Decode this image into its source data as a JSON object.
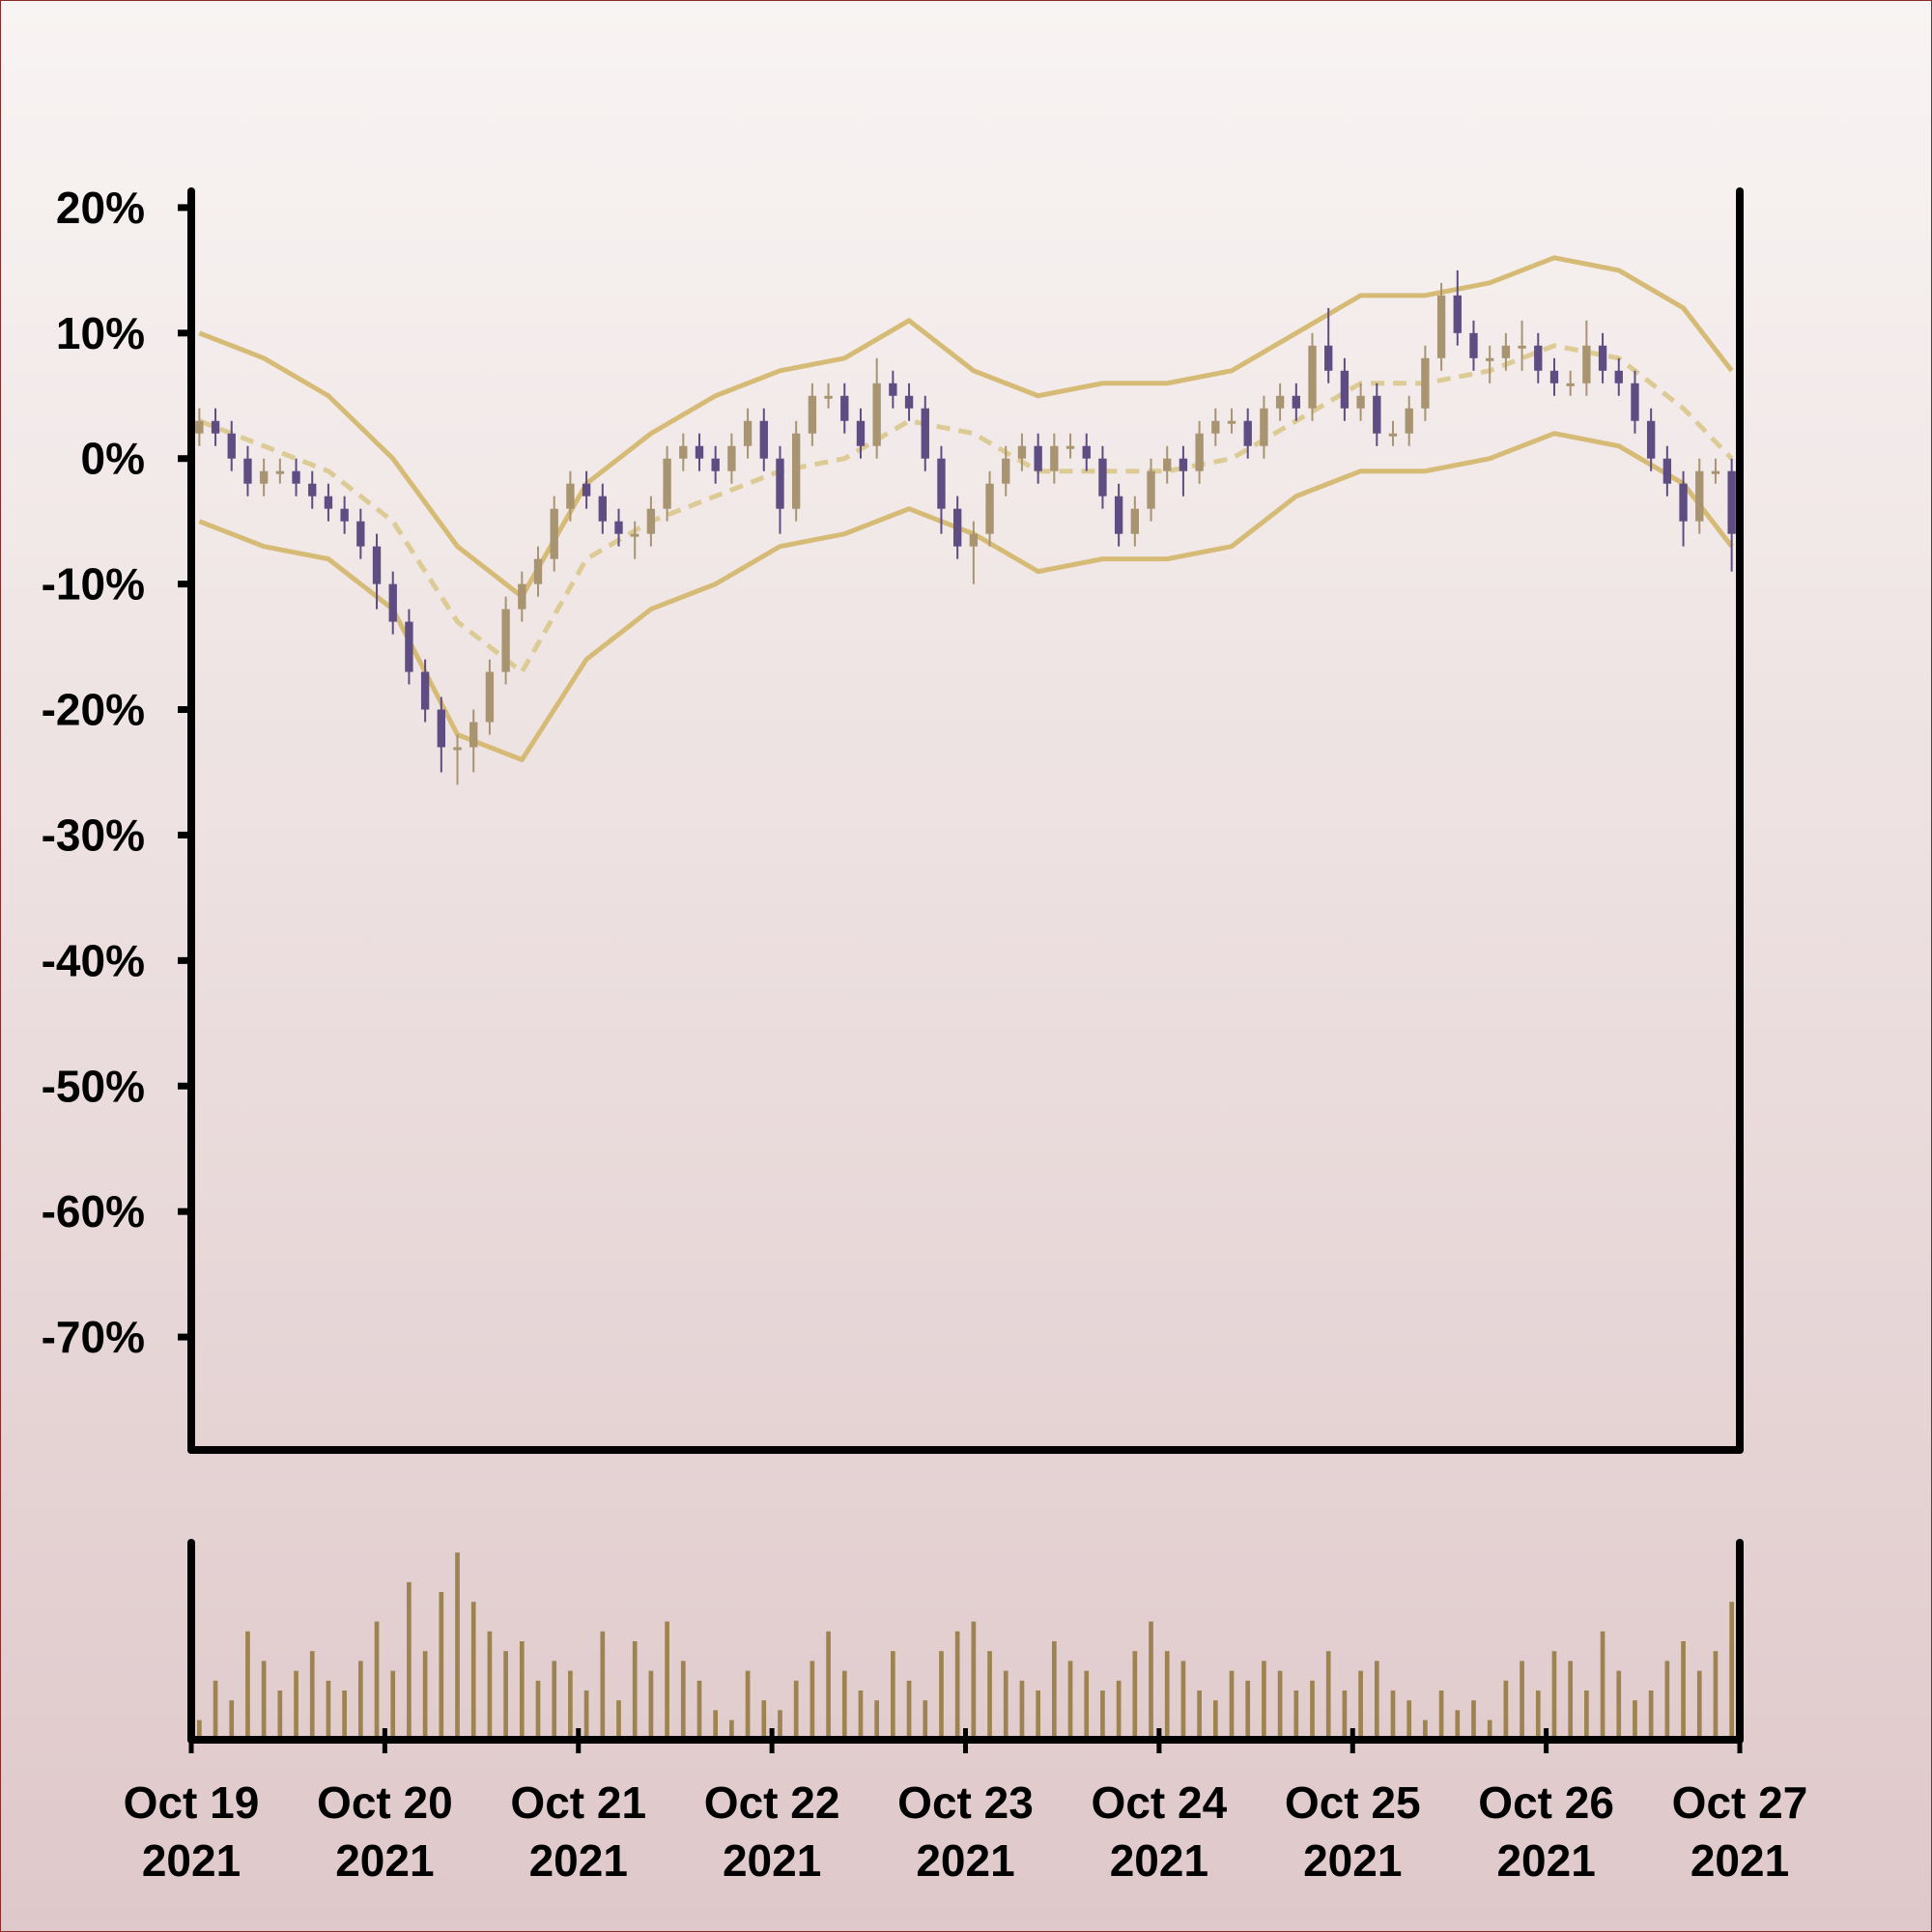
{
  "chart_data": [
    {
      "type": "candlestick",
      "x": [
        1,
        3,
        5,
        7,
        9,
        11,
        13,
        15,
        17,
        19,
        21,
        23,
        25,
        27,
        29,
        31,
        33,
        35,
        37,
        39,
        41,
        43,
        45,
        47,
        49,
        51,
        53,
        55,
        57,
        59,
        61,
        63,
        65,
        67,
        69,
        71,
        73,
        75,
        77,
        79,
        81,
        83,
        85,
        87,
        89,
        91,
        93,
        95,
        97,
        99,
        101,
        103,
        105,
        107,
        109,
        111,
        113,
        115,
        117,
        119,
        121,
        123,
        125,
        127,
        129,
        131,
        133,
        135,
        137,
        139,
        141,
        143,
        145,
        147,
        149,
        151,
        153,
        155,
        157,
        159,
        161,
        163,
        165,
        167,
        169,
        171,
        173,
        175,
        177,
        179,
        181,
        183,
        185,
        187,
        189,
        191
      ],
      "open": [
        2,
        3,
        2,
        0,
        -2,
        -1,
        -1,
        -2,
        -3,
        -4,
        -5,
        -7,
        -10,
        -13,
        -17,
        -20,
        -23,
        -23,
        -21,
        -17,
        -12,
        -10,
        -8,
        -4,
        -2,
        -3,
        -5,
        -6,
        -6,
        -4,
        0,
        1,
        0,
        -1,
        1,
        3,
        0,
        -4,
        2,
        5,
        5,
        3,
        1,
        6,
        5,
        4,
        0,
        -4,
        -7,
        -6,
        -2,
        0,
        1,
        -1,
        1,
        1,
        0,
        -3,
        -6,
        -4,
        -1,
        0,
        -1,
        2,
        3,
        3,
        1,
        4,
        5,
        4,
        9,
        7,
        4,
        5,
        2,
        2,
        4,
        8,
        13,
        10,
        8,
        8,
        9,
        9,
        7,
        6,
        6,
        9,
        7,
        6,
        3,
        0,
        -2,
        -5,
        -1,
        -1
      ],
      "high": [
        4,
        4,
        3,
        1,
        0,
        0,
        0,
        -1,
        -2,
        -3,
        -4,
        -6,
        -9,
        -12,
        -16,
        -19,
        -22,
        -20,
        -16,
        -11,
        -9,
        -7,
        -3,
        -1,
        -1,
        -2,
        -4,
        -5,
        -3,
        1,
        2,
        2,
        1,
        2,
        4,
        4,
        1,
        3,
        6,
        6,
        6,
        4,
        8,
        7,
        6,
        5,
        1,
        -3,
        -5,
        -1,
        1,
        2,
        2,
        2,
        2,
        2,
        1,
        -2,
        -3,
        0,
        1,
        1,
        3,
        4,
        4,
        4,
        5,
        6,
        6,
        10,
        12,
        8,
        6,
        6,
        3,
        5,
        9,
        14,
        15,
        11,
        9,
        10,
        11,
        10,
        8,
        7,
        11,
        10,
        8,
        7,
        4,
        1,
        -1,
        0,
        0,
        0
      ],
      "low": [
        1,
        1,
        -1,
        -3,
        -3,
        -2,
        -3,
        -4,
        -5,
        -6,
        -8,
        -12,
        -14,
        -18,
        -21,
        -25,
        -26,
        -25,
        -22,
        -18,
        -13,
        -11,
        -9,
        -5,
        -4,
        -6,
        -7,
        -8,
        -7,
        -5,
        -1,
        -1,
        -2,
        -2,
        0,
        -1,
        -6,
        -5,
        1,
        4,
        2,
        0,
        0,
        4,
        3,
        -1,
        -6,
        -8,
        -10,
        -7,
        -3,
        -1,
        -2,
        -2,
        0,
        -1,
        -4,
        -7,
        -7,
        -5,
        -2,
        -3,
        -2,
        1,
        2,
        0,
        0,
        3,
        3,
        3,
        6,
        3,
        3,
        1,
        1,
        1,
        3,
        7,
        9,
        7,
        6,
        7,
        7,
        6,
        5,
        5,
        5,
        6,
        5,
        2,
        -1,
        -3,
        -7,
        -6,
        -2,
        -9
      ],
      "close": [
        3,
        2,
        0,
        -2,
        -1,
        -1,
        -2,
        -3,
        -4,
        -5,
        -7,
        -10,
        -13,
        -17,
        -20,
        -23,
        -23,
        -21,
        -17,
        -12,
        -10,
        -8,
        -4,
        -2,
        -3,
        -5,
        -6,
        -6,
        -4,
        0,
        1,
        0,
        -1,
        1,
        3,
        0,
        -4,
        2,
        5,
        5,
        3,
        1,
        6,
        5,
        4,
        0,
        -4,
        -7,
        -6,
        -2,
        0,
        1,
        -1,
        1,
        1,
        0,
        -3,
        -6,
        -4,
        -1,
        0,
        -1,
        2,
        3,
        3,
        1,
        4,
        5,
        4,
        9,
        7,
        4,
        5,
        2,
        2,
        4,
        8,
        13,
        10,
        8,
        8,
        9,
        9,
        7,
        6,
        6,
        9,
        7,
        6,
        3,
        0,
        -2,
        -5,
        -1,
        -1,
        -6
      ],
      "up_color": "#a89470",
      "down_color": "#5e4c82",
      "bands": {
        "x": [
          1,
          9,
          17,
          25,
          33,
          41,
          49,
          57,
          65,
          73,
          81,
          89,
          97,
          105,
          113,
          121,
          129,
          137,
          145,
          153,
          161,
          169,
          177,
          185,
          191
        ],
        "upper": [
          10,
          8,
          5,
          0,
          -7,
          -11,
          -2,
          2,
          5,
          7,
          8,
          11,
          7,
          5,
          6,
          6,
          7,
          10,
          13,
          13,
          14,
          16,
          15,
          12,
          7
        ],
        "middle": [
          3,
          1,
          -1,
          -5,
          -13,
          -17,
          -8,
          -5,
          -3,
          -1,
          0,
          3,
          2,
          -1,
          -1,
          -1,
          0,
          3,
          6,
          6,
          7,
          9,
          8,
          4,
          0
        ],
        "lower": [
          -5,
          -7,
          -8,
          -12,
          -22,
          -24,
          -16,
          -12,
          -10,
          -7,
          -6,
          -4,
          -6,
          -9,
          -8,
          -8,
          -7,
          -3,
          -1,
          -1,
          0,
          2,
          1,
          -2,
          -7
        ],
        "color": "#d6bb76",
        "middle_color": "#dccb94",
        "middle_dashed": true
      },
      "xlim": [
        0,
        192
      ],
      "ylim": [
        -79,
        21.3
      ],
      "yticks": [
        {
          "value": 20,
          "label": "20%"
        },
        {
          "value": 10,
          "label": "10%"
        },
        {
          "value": 0,
          "label": "0%"
        },
        {
          "value": -10,
          "label": "-10%"
        },
        {
          "value": -20,
          "label": "-20%"
        },
        {
          "value": -30,
          "label": "-30%"
        },
        {
          "value": -40,
          "label": "-40%"
        },
        {
          "value": -50,
          "label": "-50%"
        },
        {
          "value": -60,
          "label": "-60%"
        },
        {
          "value": -70,
          "label": "-70%"
        }
      ]
    },
    {
      "type": "bar",
      "x": [
        1,
        3,
        5,
        7,
        9,
        11,
        13,
        15,
        17,
        19,
        21,
        23,
        25,
        27,
        29,
        31,
        33,
        35,
        37,
        39,
        41,
        43,
        45,
        47,
        49,
        51,
        53,
        55,
        57,
        59,
        61,
        63,
        65,
        67,
        69,
        71,
        73,
        75,
        77,
        79,
        81,
        83,
        85,
        87,
        89,
        91,
        93,
        95,
        97,
        99,
        101,
        103,
        105,
        107,
        109,
        111,
        113,
        115,
        117,
        119,
        121,
        123,
        125,
        127,
        129,
        131,
        133,
        135,
        137,
        139,
        141,
        143,
        145,
        147,
        149,
        151,
        153,
        155,
        157,
        159,
        161,
        163,
        165,
        167,
        169,
        171,
        173,
        175,
        177,
        179,
        181,
        183,
        185,
        187,
        189,
        191
      ],
      "values": [
        10,
        30,
        20,
        55,
        40,
        25,
        35,
        45,
        30,
        25,
        40,
        60,
        35,
        80,
        45,
        75,
        95,
        70,
        55,
        45,
        50,
        30,
        40,
        35,
        25,
        55,
        20,
        50,
        35,
        60,
        40,
        30,
        15,
        10,
        35,
        20,
        15,
        30,
        40,
        55,
        35,
        25,
        20,
        45,
        30,
        20,
        45,
        55,
        60,
        45,
        35,
        30,
        25,
        50,
        40,
        35,
        25,
        30,
        45,
        60,
        45,
        40,
        25,
        20,
        35,
        30,
        40,
        35,
        25,
        30,
        45,
        25,
        35,
        40,
        25,
        20,
        10,
        25,
        15,
        20,
        10,
        30,
        40,
        25,
        45,
        40,
        25,
        55,
        35,
        20,
        25,
        40,
        50,
        35,
        45,
        70
      ],
      "color": "#9c8350",
      "xlim": [
        0,
        192
      ],
      "ylim": [
        0,
        100
      ],
      "xticks": [
        {
          "value": 0,
          "label": "Oct 19 2021"
        },
        {
          "value": 24,
          "label": "Oct 20 2021"
        },
        {
          "value": 48,
          "label": "Oct 21 2021"
        },
        {
          "value": 72,
          "label": "Oct 22 2021"
        },
        {
          "value": 96,
          "label": "Oct 23 2021"
        },
        {
          "value": 120,
          "label": "Oct 24 2021"
        },
        {
          "value": 144,
          "label": "Oct 25 2021"
        },
        {
          "value": 168,
          "label": "Oct 26 2021"
        },
        {
          "value": 192,
          "label": "Oct 27 2021"
        }
      ]
    }
  ]
}
